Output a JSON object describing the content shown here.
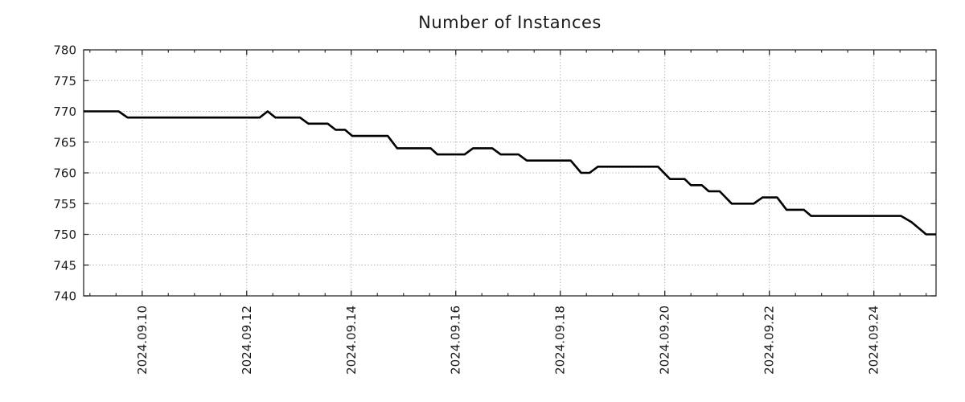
{
  "title": "Number of Instances",
  "chart_data": {
    "type": "line",
    "title": "Number of Instances",
    "xlabel": "",
    "ylabel": "",
    "legend": "none",
    "grid": "dotted",
    "xlim": [
      8.88,
      25.19
    ],
    "ylim": [
      740,
      780
    ],
    "y_ticks": [
      740,
      745,
      750,
      755,
      760,
      765,
      770,
      775,
      780
    ],
    "x_ticks": [
      {
        "t": 10,
        "label": "2024.09.10"
      },
      {
        "t": 12,
        "label": "2024.09.12"
      },
      {
        "t": 14,
        "label": "2024.09.14"
      },
      {
        "t": 16,
        "label": "2024.09.16"
      },
      {
        "t": 18,
        "label": "2024.09.18"
      },
      {
        "t": 20,
        "label": "2024.09.20"
      },
      {
        "t": 22,
        "label": "2024.09.22"
      },
      {
        "t": 24,
        "label": "2024.09.24"
      }
    ],
    "x_minor_step": 0.5,
    "x_minor_range": [
      9.0,
      25.0
    ],
    "series": [
      {
        "name": "instances",
        "points": [
          [
            8.88,
            770
          ],
          [
            9.55,
            770
          ],
          [
            9.72,
            769
          ],
          [
            12.25,
            769
          ],
          [
            12.4,
            770
          ],
          [
            12.55,
            769
          ],
          [
            13.02,
            769
          ],
          [
            13.18,
            768
          ],
          [
            13.55,
            768
          ],
          [
            13.7,
            767
          ],
          [
            13.88,
            767
          ],
          [
            14.02,
            766
          ],
          [
            14.7,
            766
          ],
          [
            14.88,
            764
          ],
          [
            15.52,
            764
          ],
          [
            15.65,
            763
          ],
          [
            16.17,
            763
          ],
          [
            16.33,
            764
          ],
          [
            16.7,
            764
          ],
          [
            16.86,
            763
          ],
          [
            17.2,
            763
          ],
          [
            17.36,
            762
          ],
          [
            18.2,
            762
          ],
          [
            18.4,
            760
          ],
          [
            18.56,
            760
          ],
          [
            18.72,
            761
          ],
          [
            19.87,
            761
          ],
          [
            20.1,
            759
          ],
          [
            20.38,
            759
          ],
          [
            20.5,
            758
          ],
          [
            20.71,
            758
          ],
          [
            20.84,
            757
          ],
          [
            21.05,
            757
          ],
          [
            21.28,
            755
          ],
          [
            21.7,
            755
          ],
          [
            21.87,
            756
          ],
          [
            22.15,
            756
          ],
          [
            22.33,
            754
          ],
          [
            22.66,
            754
          ],
          [
            22.8,
            753
          ],
          [
            24.52,
            753
          ],
          [
            24.72,
            752
          ],
          [
            25.0,
            750
          ],
          [
            25.19,
            750
          ]
        ]
      }
    ],
    "colors": {
      "line": "#000000",
      "grid": "#a6a6a6",
      "axis": "#2b2b2b",
      "text": "#1a1a1a",
      "background": "#ffffff"
    }
  }
}
